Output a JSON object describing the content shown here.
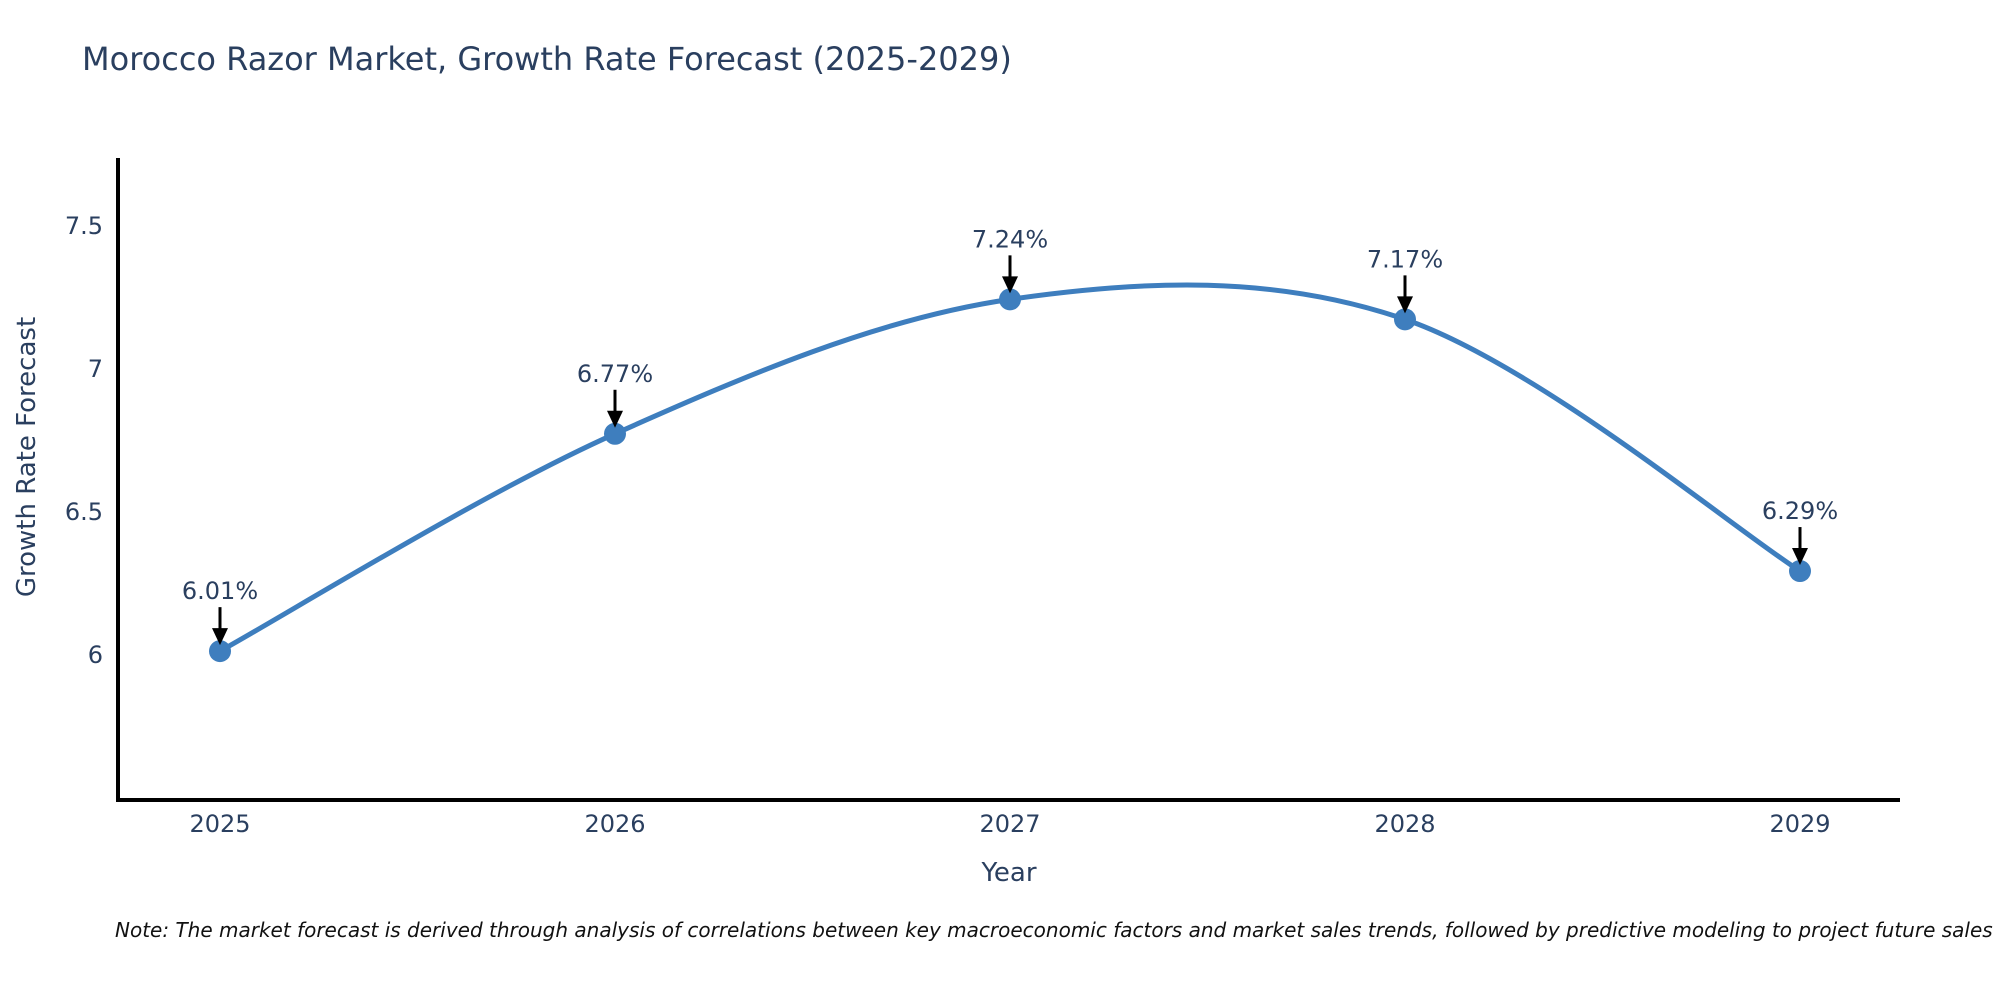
{
  "title": "Morocco Razor Market, Growth Rate Forecast (2025-2029)",
  "footnote": "Note: The market forecast is derived through analysis of correlations between key macroeconomic factors and market sales trends, followed by predictive modeling to project future sales trends.",
  "chart_data": {
    "type": "line",
    "title": "Morocco Razor Market, Growth Rate Forecast (2025-2029)",
    "xlabel": "Year",
    "ylabel": "Growth Rate Forecast",
    "categories": [
      "2025",
      "2026",
      "2027",
      "2028",
      "2029"
    ],
    "values": [
      6.01,
      6.77,
      7.24,
      7.17,
      6.29
    ],
    "point_labels": [
      "6.01%",
      "6.77%",
      "7.24%",
      "7.17%",
      "6.29%"
    ],
    "yticks": [
      6,
      6.5,
      7,
      7.5
    ],
    "ytick_labels": [
      "6",
      "6.5",
      "7",
      "7.5"
    ],
    "ylim": [
      5.49,
      7.73
    ],
    "line_shape": "spline",
    "grid": false,
    "legend": "none",
    "colors": {
      "line": "#3E7EBE",
      "marker": "#3E7EBE",
      "axis": "#000000",
      "text": "#2a3f5f",
      "arrow": "#000000"
    }
  }
}
